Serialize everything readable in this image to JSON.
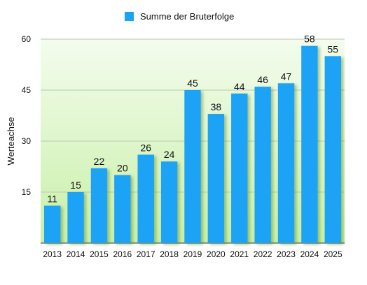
{
  "chart_data": {
    "type": "bar",
    "title": "",
    "xlabel": "",
    "ylabel": "Werteachse",
    "legend": {
      "position": "top",
      "entries": [
        "Summe der Bruterfolge"
      ]
    },
    "series": [
      {
        "name": "Summe der Bruterfolge",
        "color": "#1aa3f5",
        "values": [
          11,
          15,
          22,
          20,
          26,
          24,
          45,
          38,
          44,
          46,
          47,
          58,
          55
        ]
      }
    ],
    "categories": [
      "2013",
      "2014",
      "2015",
      "2016",
      "2017",
      "2018",
      "2019",
      "2020",
      "2021",
      "2022",
      "2023",
      "2024",
      "2025"
    ],
    "ylim": [
      0,
      60
    ],
    "yticks": [
      15,
      30,
      45,
      60
    ],
    "ytick_labels": [
      "15",
      "30",
      "45",
      "60"
    ],
    "grid": true,
    "background_gradient": [
      "#c8f0a8",
      "#f4fcee"
    ]
  }
}
